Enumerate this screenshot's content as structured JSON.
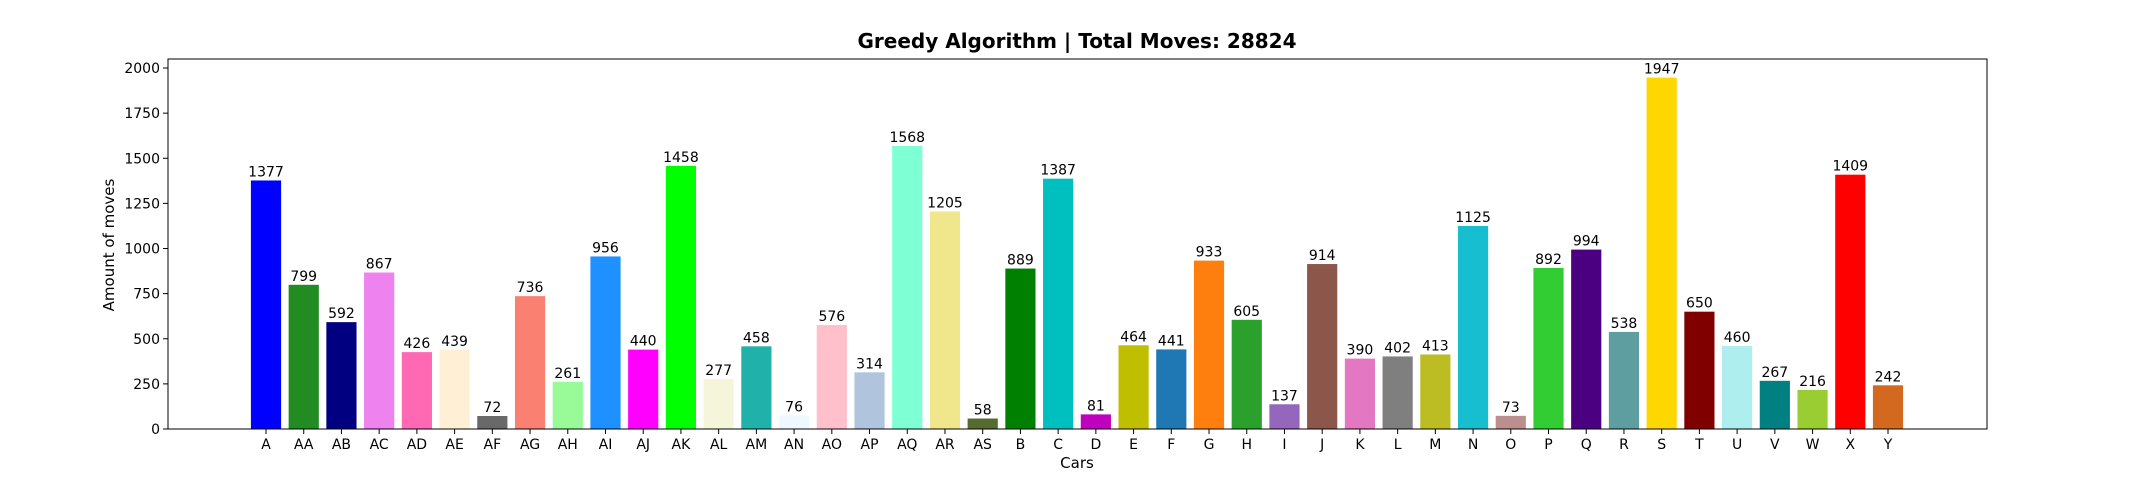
{
  "chart_data": {
    "type": "bar",
    "title": "Greedy Algorithm | Total Moves: 28824",
    "xlabel": "Cars",
    "ylabel": "Amount of moves",
    "ylim": [
      0,
      2050
    ],
    "yticks": [
      0,
      250,
      500,
      750,
      1000,
      1250,
      1500,
      1750,
      2000
    ],
    "grid": false,
    "categories": [
      "A",
      "AA",
      "AB",
      "AC",
      "AD",
      "AE",
      "AF",
      "AG",
      "AH",
      "AI",
      "AJ",
      "AK",
      "AL",
      "AM",
      "AN",
      "AO",
      "AP",
      "AQ",
      "AR",
      "AS",
      "B",
      "C",
      "D",
      "E",
      "F",
      "G",
      "H",
      "I",
      "J",
      "K",
      "L",
      "M",
      "N",
      "O",
      "P",
      "Q",
      "R",
      "S",
      "T",
      "U",
      "V",
      "W",
      "X",
      "Y"
    ],
    "values": [
      1377,
      799,
      592,
      867,
      426,
      439,
      72,
      736,
      261,
      956,
      440,
      1458,
      277,
      458,
      76,
      576,
      314,
      1568,
      1205,
      58,
      889,
      1387,
      81,
      464,
      441,
      933,
      605,
      137,
      914,
      390,
      402,
      413,
      1125,
      73,
      892,
      994,
      538,
      1947,
      650,
      460,
      267,
      216,
      1409,
      242
    ],
    "colors": [
      "#0000ff",
      "#228b22",
      "#000080",
      "#ee82ee",
      "#ff69b4",
      "#ffefd5",
      "#696969",
      "#fa8072",
      "#98fb98",
      "#1e90ff",
      "#ff00ff",
      "#00ff00",
      "#f5f5dc",
      "#20b2aa",
      "#f0f8ff",
      "#ffc0cb",
      "#b0c4de",
      "#7fffd4",
      "#f0e68c",
      "#556b2f",
      "#008000",
      "#00bfbf",
      "#bf00bf",
      "#bfbf00",
      "#1f77b4",
      "#ff7f0e",
      "#2ca02c",
      "#9467bd",
      "#8c564b",
      "#e377c2",
      "#7f7f7f",
      "#bcbd22",
      "#17becf",
      "#bc8f8f",
      "#32cd32",
      "#4b0082",
      "#5f9ea0",
      "#ffd700",
      "#800000",
      "#afeeee",
      "#008080",
      "#9acd32",
      "#ff0000",
      "#d2691e"
    ]
  }
}
